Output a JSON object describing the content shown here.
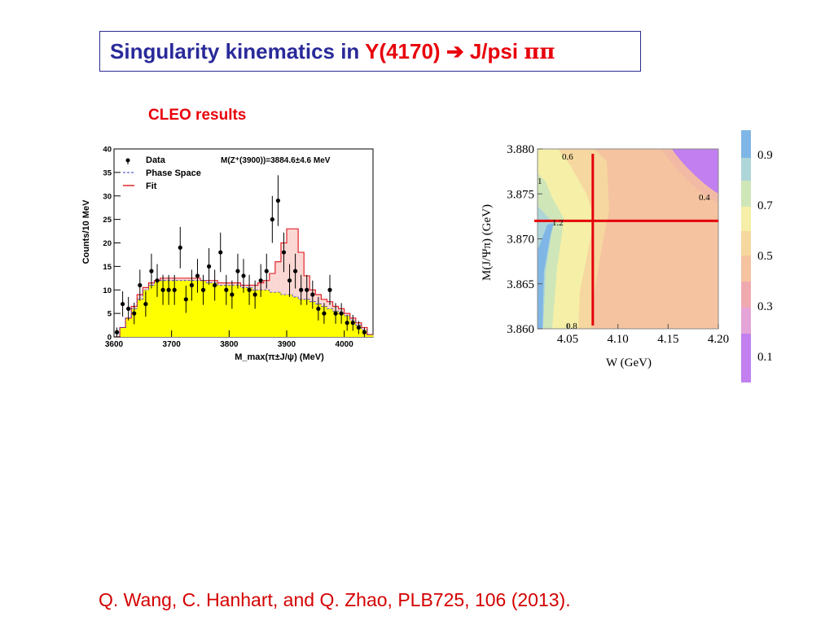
{
  "title": {
    "part1": "Singularity kinematics in ",
    "part2": "Y(4170) ",
    "arrow": "➔",
    "part3": " J/psi ",
    "pipi": "ππ"
  },
  "subhead": "CLEO results",
  "citation": "Q. Wang, C. Hanhart, and Q. Zhao, PLB725, 106 (2013).",
  "colors": {
    "title_blue": "#2a2a9a",
    "accent_red": "#e8000b",
    "histogram_fill": "#ffff00",
    "fit_line": "#e3242b",
    "contour_orange": "#f5c3a0"
  },
  "chart_data": [
    {
      "type": "bar",
      "xlabel": "M_max(π±J/ψ) (MeV)",
      "ylabel": "Counts/10 MeV",
      "xlim": [
        3600,
        4050
      ],
      "ylim": [
        0,
        40
      ],
      "x_ticks": [
        "3600",
        "3700",
        "3800",
        "3900",
        "4000"
      ],
      "y_ticks": [
        "0",
        "5",
        "10",
        "15",
        "20",
        "25",
        "30",
        "35",
        "40"
      ],
      "legend": [
        "Data",
        "Phase Space",
        "Fit"
      ],
      "annotation": "M(Z⁺(3900))=3884.6±4.6 MeV",
      "bin_edges_start": 3600,
      "bin_width": 10,
      "phase_space": [
        0,
        2,
        4,
        6,
        8,
        10,
        11,
        12,
        12,
        12,
        12,
        12,
        12,
        12,
        12,
        12,
        11.5,
        11.5,
        11,
        11,
        11,
        11,
        10.5,
        10.5,
        10,
        10,
        10,
        9.5,
        9.5,
        9,
        9,
        8.5,
        8,
        8,
        7.5,
        7,
        6.5,
        6,
        5.5,
        5,
        4.5,
        3.5,
        2.5,
        1.5,
        0.5
      ],
      "fit": [
        0,
        2,
        4,
        6.5,
        9,
        10.5,
        11.5,
        12,
        12.5,
        12.5,
        12.5,
        12.5,
        12.5,
        12.5,
        12.5,
        12,
        12,
        12,
        11.5,
        11.5,
        11.5,
        11.5,
        11,
        11,
        11,
        11.5,
        12,
        13.5,
        16,
        20,
        23,
        23,
        18,
        13,
        10,
        9,
        8,
        7.5,
        6.5,
        6,
        5,
        4,
        3,
        2,
        0.5
      ],
      "data_points": [
        {
          "x": 3605,
          "y": 1,
          "err": 1
        },
        {
          "x": 3615,
          "y": 7,
          "err": 2.7
        },
        {
          "x": 3625,
          "y": 6,
          "err": 2.5
        },
        {
          "x": 3635,
          "y": 5,
          "err": 2.3
        },
        {
          "x": 3645,
          "y": 11,
          "err": 3.3
        },
        {
          "x": 3655,
          "y": 7,
          "err": 2.7
        },
        {
          "x": 3665,
          "y": 14,
          "err": 3.7
        },
        {
          "x": 3675,
          "y": 12,
          "err": 3.5
        },
        {
          "x": 3685,
          "y": 10,
          "err": 3.2
        },
        {
          "x": 3695,
          "y": 10,
          "err": 3.2
        },
        {
          "x": 3705,
          "y": 10,
          "err": 3.2
        },
        {
          "x": 3715,
          "y": 19,
          "err": 4.4
        },
        {
          "x": 3725,
          "y": 8,
          "err": 2.9
        },
        {
          "x": 3735,
          "y": 11,
          "err": 3.3
        },
        {
          "x": 3745,
          "y": 13,
          "err": 3.6
        },
        {
          "x": 3755,
          "y": 10,
          "err": 3.2
        },
        {
          "x": 3765,
          "y": 15,
          "err": 3.9
        },
        {
          "x": 3775,
          "y": 11,
          "err": 3.3
        },
        {
          "x": 3785,
          "y": 18,
          "err": 4.2
        },
        {
          "x": 3795,
          "y": 10,
          "err": 3.2
        },
        {
          "x": 3805,
          "y": 9,
          "err": 3
        },
        {
          "x": 3815,
          "y": 14,
          "err": 3.7
        },
        {
          "x": 3825,
          "y": 13,
          "err": 3.6
        },
        {
          "x": 3835,
          "y": 10,
          "err": 3.2
        },
        {
          "x": 3845,
          "y": 9,
          "err": 3
        },
        {
          "x": 3855,
          "y": 12,
          "err": 3.5
        },
        {
          "x": 3865,
          "y": 14,
          "err": 3.7
        },
        {
          "x": 3875,
          "y": 25,
          "err": 5
        },
        {
          "x": 3885,
          "y": 29,
          "err": 5.4
        },
        {
          "x": 3895,
          "y": 18,
          "err": 4.2
        },
        {
          "x": 3905,
          "y": 12,
          "err": 3.5
        },
        {
          "x": 3915,
          "y": 14,
          "err": 3.7
        },
        {
          "x": 3925,
          "y": 10,
          "err": 3.2
        },
        {
          "x": 3935,
          "y": 10,
          "err": 3.2
        },
        {
          "x": 3945,
          "y": 9,
          "err": 3
        },
        {
          "x": 3955,
          "y": 6,
          "err": 2.5
        },
        {
          "x": 3965,
          "y": 5,
          "err": 2.2
        },
        {
          "x": 3975,
          "y": 10,
          "err": 3.2
        },
        {
          "x": 3985,
          "y": 5,
          "err": 2.2
        },
        {
          "x": 3995,
          "y": 5,
          "err": 2.2
        },
        {
          "x": 4005,
          "y": 3,
          "err": 1.7
        },
        {
          "x": 4015,
          "y": 3,
          "err": 1.7
        },
        {
          "x": 4025,
          "y": 2,
          "err": 1.4
        },
        {
          "x": 4035,
          "y": 1,
          "err": 1
        }
      ]
    },
    {
      "type": "heatmap",
      "xlabel": "W (GeV)",
      "ylabel": "M(J/Ψπ) (GeV)",
      "xlim": [
        4.02,
        4.2
      ],
      "ylim": [
        3.86,
        3.88
      ],
      "x_ticks": [
        "4.05",
        "4.10",
        "4.15",
        "4.20"
      ],
      "y_ticks": [
        "3.860",
        "3.865",
        "3.870",
        "3.875",
        "3.880"
      ],
      "contour_labels": [
        "0.6",
        "1",
        "1.2",
        "0.4",
        "0.8"
      ],
      "colorbar_ticks": [
        "0.9",
        "0.7",
        "0.5",
        "0.3",
        "0.1"
      ],
      "crosshair": {
        "x": 4.075,
        "y": 3.872
      }
    }
  ]
}
